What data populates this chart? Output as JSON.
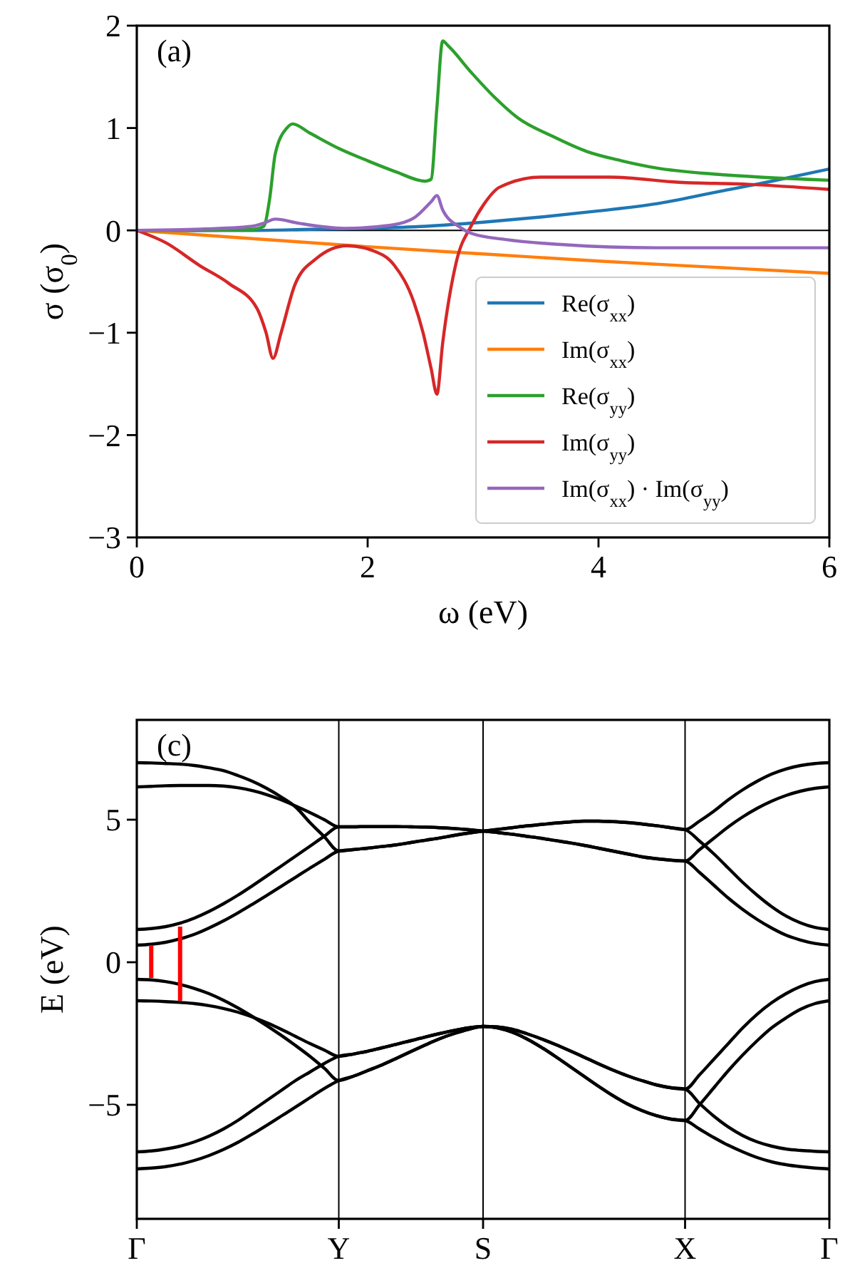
{
  "chart_data": [
    {
      "type": "line",
      "xlabel": "ω (eV)",
      "ylabel": "σ (σ$_{0}$)",
      "annotations": [
        "(a)"
      ],
      "xlim": [
        0,
        6
      ],
      "ylim": [
        -3,
        2
      ],
      "xticks": [
        0,
        2,
        4,
        6
      ],
      "yticks": [
        {
          "value": -3,
          "label": "−3"
        },
        {
          "value": -2,
          "label": "−2"
        },
        {
          "value": -1,
          "label": "−1"
        },
        0,
        1,
        2
      ],
      "ref_lines": [
        {
          "axis": "y",
          "value": 0,
          "color": "#000000"
        }
      ],
      "legend": "bottom right",
      "grid": false,
      "series": [
        {
          "name": "Re(σ$_{xx}$)",
          "color": "#1f77b4",
          "x": [
            0,
            1,
            1.5,
            2,
            2.5,
            3,
            3.5,
            4,
            4.5,
            5,
            5.5,
            6
          ],
          "values": [
            0,
            0,
            0.01,
            0.02,
            0.04,
            0.08,
            0.13,
            0.19,
            0.26,
            0.37,
            0.48,
            0.6
          ]
        },
        {
          "name": "Im(σ$_{xx}$)",
          "color": "#ff7f0e",
          "x": [
            0,
            1,
            2,
            3,
            4,
            5,
            6
          ],
          "values": [
            0,
            -0.08,
            -0.16,
            -0.23,
            -0.3,
            -0.36,
            -0.42
          ]
        },
        {
          "name": "Re(σ$_{yy}$)",
          "color": "#2ca02c",
          "x": [
            0,
            0.5,
            1,
            1.1,
            1.15,
            1.2,
            1.3,
            1.35,
            1.5,
            1.75,
            2,
            2.25,
            2.5,
            2.55,
            2.6,
            2.65,
            2.7,
            2.9,
            3.1,
            3.3,
            3.6,
            3.9,
            4.2,
            4.5,
            5,
            5.4,
            6
          ],
          "values": [
            0,
            0,
            0.01,
            0.04,
            0.3,
            0.75,
            1,
            1.04,
            0.95,
            0.8,
            0.68,
            0.57,
            0.48,
            0.5,
            1.2,
            1.85,
            1.8,
            1.54,
            1.3,
            1.1,
            0.92,
            0.77,
            0.68,
            0.61,
            0.55,
            0.52,
            0.49
          ]
        },
        {
          "name": "Im(σ$_{yy}$)",
          "color": "#d62728",
          "x": [
            0,
            0.25,
            0.54,
            0.8,
            1.04,
            1.12,
            1.18,
            1.25,
            1.37,
            1.55,
            1.82,
            2.05,
            2.23,
            2.4,
            2.48,
            2.55,
            2.6,
            2.65,
            2.77,
            2.9,
            3.01,
            3.14,
            3.5,
            4.1,
            4.7,
            5.3,
            6
          ],
          "values": [
            0,
            -0.12,
            -0.34,
            -0.52,
            -0.76,
            -1,
            -1.25,
            -1,
            -0.53,
            -0.28,
            -0.15,
            -0.2,
            -0.34,
            -0.7,
            -1,
            -1.35,
            -1.6,
            -1.1,
            -0.3,
            0.05,
            0.26,
            0.42,
            0.52,
            0.52,
            0.47,
            0.45,
            0.4
          ]
        },
        {
          "name": "Im(σ$_{xx}$) · Im(σ$_{yy}$)",
          "color": "#9467bd",
          "x": [
            0,
            0.5,
            1,
            1.1,
            1.2,
            1.4,
            1.8,
            2.2,
            2.4,
            2.55,
            2.6,
            2.65,
            2.8,
            2.9,
            3.2,
            3.7,
            4.5,
            6
          ],
          "values": [
            0,
            0.01,
            0.04,
            0.07,
            0.11,
            0.07,
            0.02,
            0.05,
            0.12,
            0.28,
            0.34,
            0.2,
            0.03,
            -0.03,
            -0.09,
            -0.14,
            -0.17,
            -0.17
          ]
        }
      ]
    },
    {
      "type": "line",
      "ylabel": "E (eV)",
      "annotations": [
        "(c)"
      ],
      "ylim": [
        -9,
        8.5
      ],
      "categories": [
        "Γ",
        null,
        null,
        null,
        null,
        null,
        null,
        null,
        null,
        null,
        null,
        null,
        null,
        null,
        "Y",
        null,
        null,
        null,
        null,
        null,
        null,
        null,
        null,
        null,
        "S",
        null,
        null,
        null,
        null,
        null,
        null,
        null,
        null,
        null,
        null,
        null,
        null,
        null,
        "X",
        null,
        null,
        null,
        null,
        null,
        null,
        null,
        null,
        null,
        "Γ"
      ],
      "yticks": [
        {
          "value": -5,
          "label": "−5"
        },
        0,
        5
      ],
      "grid": "x",
      "series": [
        {
          "color": "#000000",
          "values": [
            7.0,
            6.99,
            6.97,
            6.95,
            6.9,
            6.82,
            6.72,
            6.55,
            6.35,
            6.1,
            5.8,
            5.45,
            4.9,
            4.4,
            3.9,
            3.95,
            4.0,
            4.06,
            4.12,
            4.2,
            4.28,
            4.36,
            4.45,
            4.53,
            4.6,
            4.66,
            4.72,
            4.78,
            4.83,
            4.88,
            4.92,
            4.95,
            4.95,
            4.93,
            4.9,
            4.85,
            4.79,
            4.72,
            4.65,
            4.95,
            5.3,
            5.7,
            6.05,
            6.35,
            6.6,
            6.78,
            6.9,
            6.97,
            7.0
          ]
        },
        {
          "color": "#000000",
          "values": [
            6.15,
            6.17,
            6.19,
            6.2,
            6.2,
            6.2,
            6.18,
            6.12,
            6.02,
            5.88,
            5.7,
            5.48,
            5.25,
            5.0,
            4.75,
            4.75,
            4.76,
            4.76,
            4.76,
            4.75,
            4.74,
            4.72,
            4.69,
            4.65,
            4.6,
            4.55,
            4.49,
            4.42,
            4.35,
            4.27,
            4.19,
            4.1,
            4.0,
            3.9,
            3.8,
            3.7,
            3.63,
            3.58,
            3.55,
            3.95,
            4.35,
            4.75,
            5.1,
            5.4,
            5.65,
            5.85,
            6.0,
            6.1,
            6.15
          ]
        },
        {
          "color": "#000000",
          "values": [
            1.15,
            1.18,
            1.25,
            1.37,
            1.55,
            1.78,
            2.05,
            2.35,
            2.68,
            3.02,
            3.37,
            3.72,
            4.07,
            4.42,
            4.75,
            4.75,
            4.76,
            4.76,
            4.76,
            4.75,
            4.74,
            4.72,
            4.69,
            4.65,
            4.6,
            4.55,
            4.49,
            4.42,
            4.35,
            4.27,
            4.19,
            4.1,
            4.0,
            3.9,
            3.8,
            3.7,
            3.63,
            3.58,
            3.55,
            3.15,
            2.7,
            2.25,
            1.85,
            1.5,
            1.2,
            0.95,
            0.78,
            0.66,
            0.6
          ]
        },
        {
          "color": "#000000",
          "values": [
            0.6,
            0.63,
            0.7,
            0.82,
            0.98,
            1.2,
            1.45,
            1.73,
            2.03,
            2.34,
            2.66,
            2.98,
            3.3,
            3.61,
            3.9,
            3.95,
            4.0,
            4.06,
            4.12,
            4.2,
            4.28,
            4.36,
            4.45,
            4.53,
            4.6,
            4.66,
            4.72,
            4.78,
            4.83,
            4.88,
            4.92,
            4.95,
            4.95,
            4.93,
            4.9,
            4.85,
            4.79,
            4.72,
            4.65,
            4.25,
            3.8,
            3.3,
            2.8,
            2.35,
            1.95,
            1.62,
            1.38,
            1.22,
            1.15
          ]
        },
        {
          "color": "#000000",
          "values": [
            -0.6,
            -0.62,
            -0.68,
            -0.78,
            -0.92,
            -1.1,
            -1.33,
            -1.6,
            -1.9,
            -2.22,
            -2.56,
            -2.92,
            -3.3,
            -3.72,
            -4.15,
            -4.0,
            -3.8,
            -3.6,
            -3.37,
            -3.13,
            -2.9,
            -2.68,
            -2.5,
            -2.35,
            -2.25,
            -2.3,
            -2.45,
            -2.68,
            -2.97,
            -3.3,
            -3.65,
            -4.0,
            -4.35,
            -4.68,
            -4.97,
            -5.2,
            -5.38,
            -5.5,
            -5.55,
            -5.0,
            -4.4,
            -3.8,
            -3.25,
            -2.75,
            -2.3,
            -1.95,
            -1.65,
            -1.45,
            -1.35
          ]
        },
        {
          "color": "#000000",
          "values": [
            -1.35,
            -1.36,
            -1.38,
            -1.41,
            -1.45,
            -1.52,
            -1.62,
            -1.75,
            -1.92,
            -2.12,
            -2.35,
            -2.6,
            -2.85,
            -3.08,
            -3.3,
            -3.22,
            -3.12,
            -3.0,
            -2.88,
            -2.75,
            -2.62,
            -2.5,
            -2.39,
            -2.3,
            -2.25,
            -2.27,
            -2.35,
            -2.5,
            -2.68,
            -2.88,
            -3.1,
            -3.33,
            -3.56,
            -3.78,
            -3.98,
            -4.15,
            -4.3,
            -4.4,
            -4.45,
            -4.95,
            -5.4,
            -5.78,
            -6.08,
            -6.3,
            -6.45,
            -6.55,
            -6.6,
            -6.63,
            -6.65
          ]
        },
        {
          "color": "#000000",
          "values": [
            -6.65,
            -6.62,
            -6.55,
            -6.45,
            -6.3,
            -6.1,
            -5.85,
            -5.55,
            -5.2,
            -4.85,
            -4.5,
            -4.15,
            -3.85,
            -3.55,
            -3.3,
            -3.22,
            -3.12,
            -3.0,
            -2.88,
            -2.75,
            -2.62,
            -2.5,
            -2.39,
            -2.3,
            -2.25,
            -2.27,
            -2.35,
            -2.5,
            -2.68,
            -2.88,
            -3.1,
            -3.33,
            -3.56,
            -3.78,
            -3.98,
            -4.15,
            -4.3,
            -4.4,
            -4.45,
            -3.95,
            -3.4,
            -2.85,
            -2.3,
            -1.82,
            -1.42,
            -1.1,
            -0.85,
            -0.68,
            -0.6
          ]
        },
        {
          "color": "#000000",
          "values": [
            -7.25,
            -7.22,
            -7.17,
            -7.08,
            -6.95,
            -6.78,
            -6.57,
            -6.32,
            -6.03,
            -5.72,
            -5.4,
            -5.08,
            -4.75,
            -4.43,
            -4.15,
            -4.0,
            -3.8,
            -3.6,
            -3.37,
            -3.13,
            -2.9,
            -2.68,
            -2.5,
            -2.35,
            -2.25,
            -2.3,
            -2.45,
            -2.68,
            -2.97,
            -3.3,
            -3.65,
            -4.0,
            -4.35,
            -4.68,
            -4.97,
            -5.2,
            -5.38,
            -5.5,
            -5.55,
            -5.85,
            -6.15,
            -6.42,
            -6.65,
            -6.85,
            -7.0,
            -7.1,
            -7.17,
            -7.22,
            -7.25
          ]
        },
        {
          "type": "bar",
          "color": "#ff0000",
          "base": [
            null,
            -0.55,
            null,
            -1.35,
            null,
            null,
            null,
            null,
            null,
            null,
            null,
            null,
            null,
            null,
            null,
            null,
            null,
            null,
            null,
            null,
            null,
            null,
            null,
            null,
            null,
            null,
            null,
            null,
            null,
            null,
            null,
            null,
            null,
            null,
            null,
            null,
            null,
            null,
            null,
            null,
            null,
            null,
            null,
            null,
            null,
            null,
            null,
            null,
            null
          ],
          "values": [
            null,
            1.15,
            null,
            2.6,
            null,
            null,
            null,
            null,
            null,
            null,
            null,
            null,
            null,
            null,
            null,
            null,
            null,
            null,
            null,
            null,
            null,
            null,
            null,
            null,
            null,
            null,
            null,
            null,
            null,
            null,
            null,
            null,
            null,
            null,
            null,
            null,
            null,
            null,
            null,
            null,
            null,
            null,
            null,
            null,
            null,
            null,
            null,
            null,
            null
          ]
        }
      ]
    }
  ]
}
